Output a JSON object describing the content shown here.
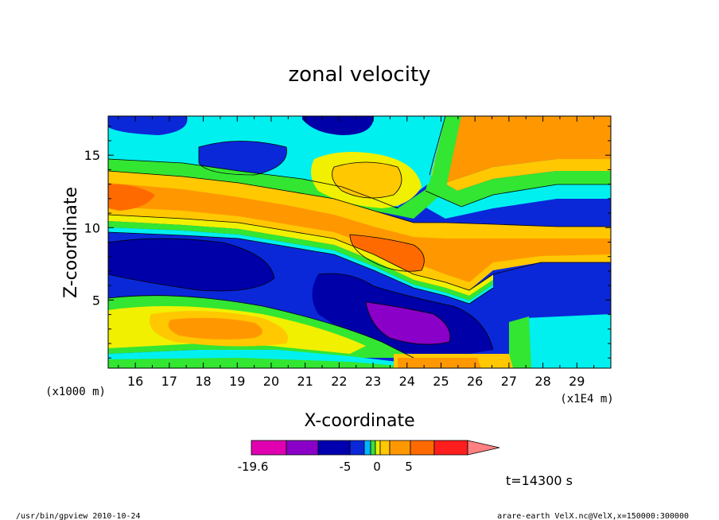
{
  "chart_data": {
    "type": "heatmap",
    "title": "zonal velocity",
    "xlabel": "X-coordinate",
    "ylabel": "Z-coordinate",
    "x_unit": "(x1E4 m)",
    "y_unit": "(x1000 m)",
    "x_ticks": [
      "16",
      "17",
      "18",
      "19",
      "20",
      "21",
      "22",
      "23",
      "24",
      "25",
      "26",
      "27",
      "28",
      "29"
    ],
    "y_ticks": [
      "5",
      "10",
      "15"
    ],
    "xlim": [
      15.2,
      30.0
    ],
    "ylim": [
      0.3,
      17.7
    ],
    "colorbar": {
      "labels": [
        {
          "text": "-19.6",
          "value": -19.6
        },
        {
          "text": "-5",
          "value": -5
        },
        {
          "text": "0",
          "value": 0
        },
        {
          "text": "5",
          "value": 5
        }
      ],
      "colors": [
        "#e000b0",
        "#8a00c8",
        "#0000b0",
        "#0a28d8",
        "#00b4ff",
        "#36e03a",
        "#e8f000",
        "#ffc800",
        "#ff9800",
        "#ff6a00",
        "#ff1e1e",
        "#ff8080"
      ]
    },
    "palette": {
      "dark_blue": "#0000a8",
      "blue": "#0a28d8",
      "cyan": "#00f0f0",
      "green": "#32e632",
      "yellow": "#f0f000",
      "light_orange": "#ffc800",
      "orange": "#ff9800",
      "dark_orange": "#ff6a00",
      "purple": "#8a00c8"
    },
    "time_label": "t=14300 s"
  },
  "footer": {
    "left": "/usr/bin/gpview   2010-10-24",
    "right": "arare-earth_VelX.nc@VelX,x=150000:300000"
  }
}
